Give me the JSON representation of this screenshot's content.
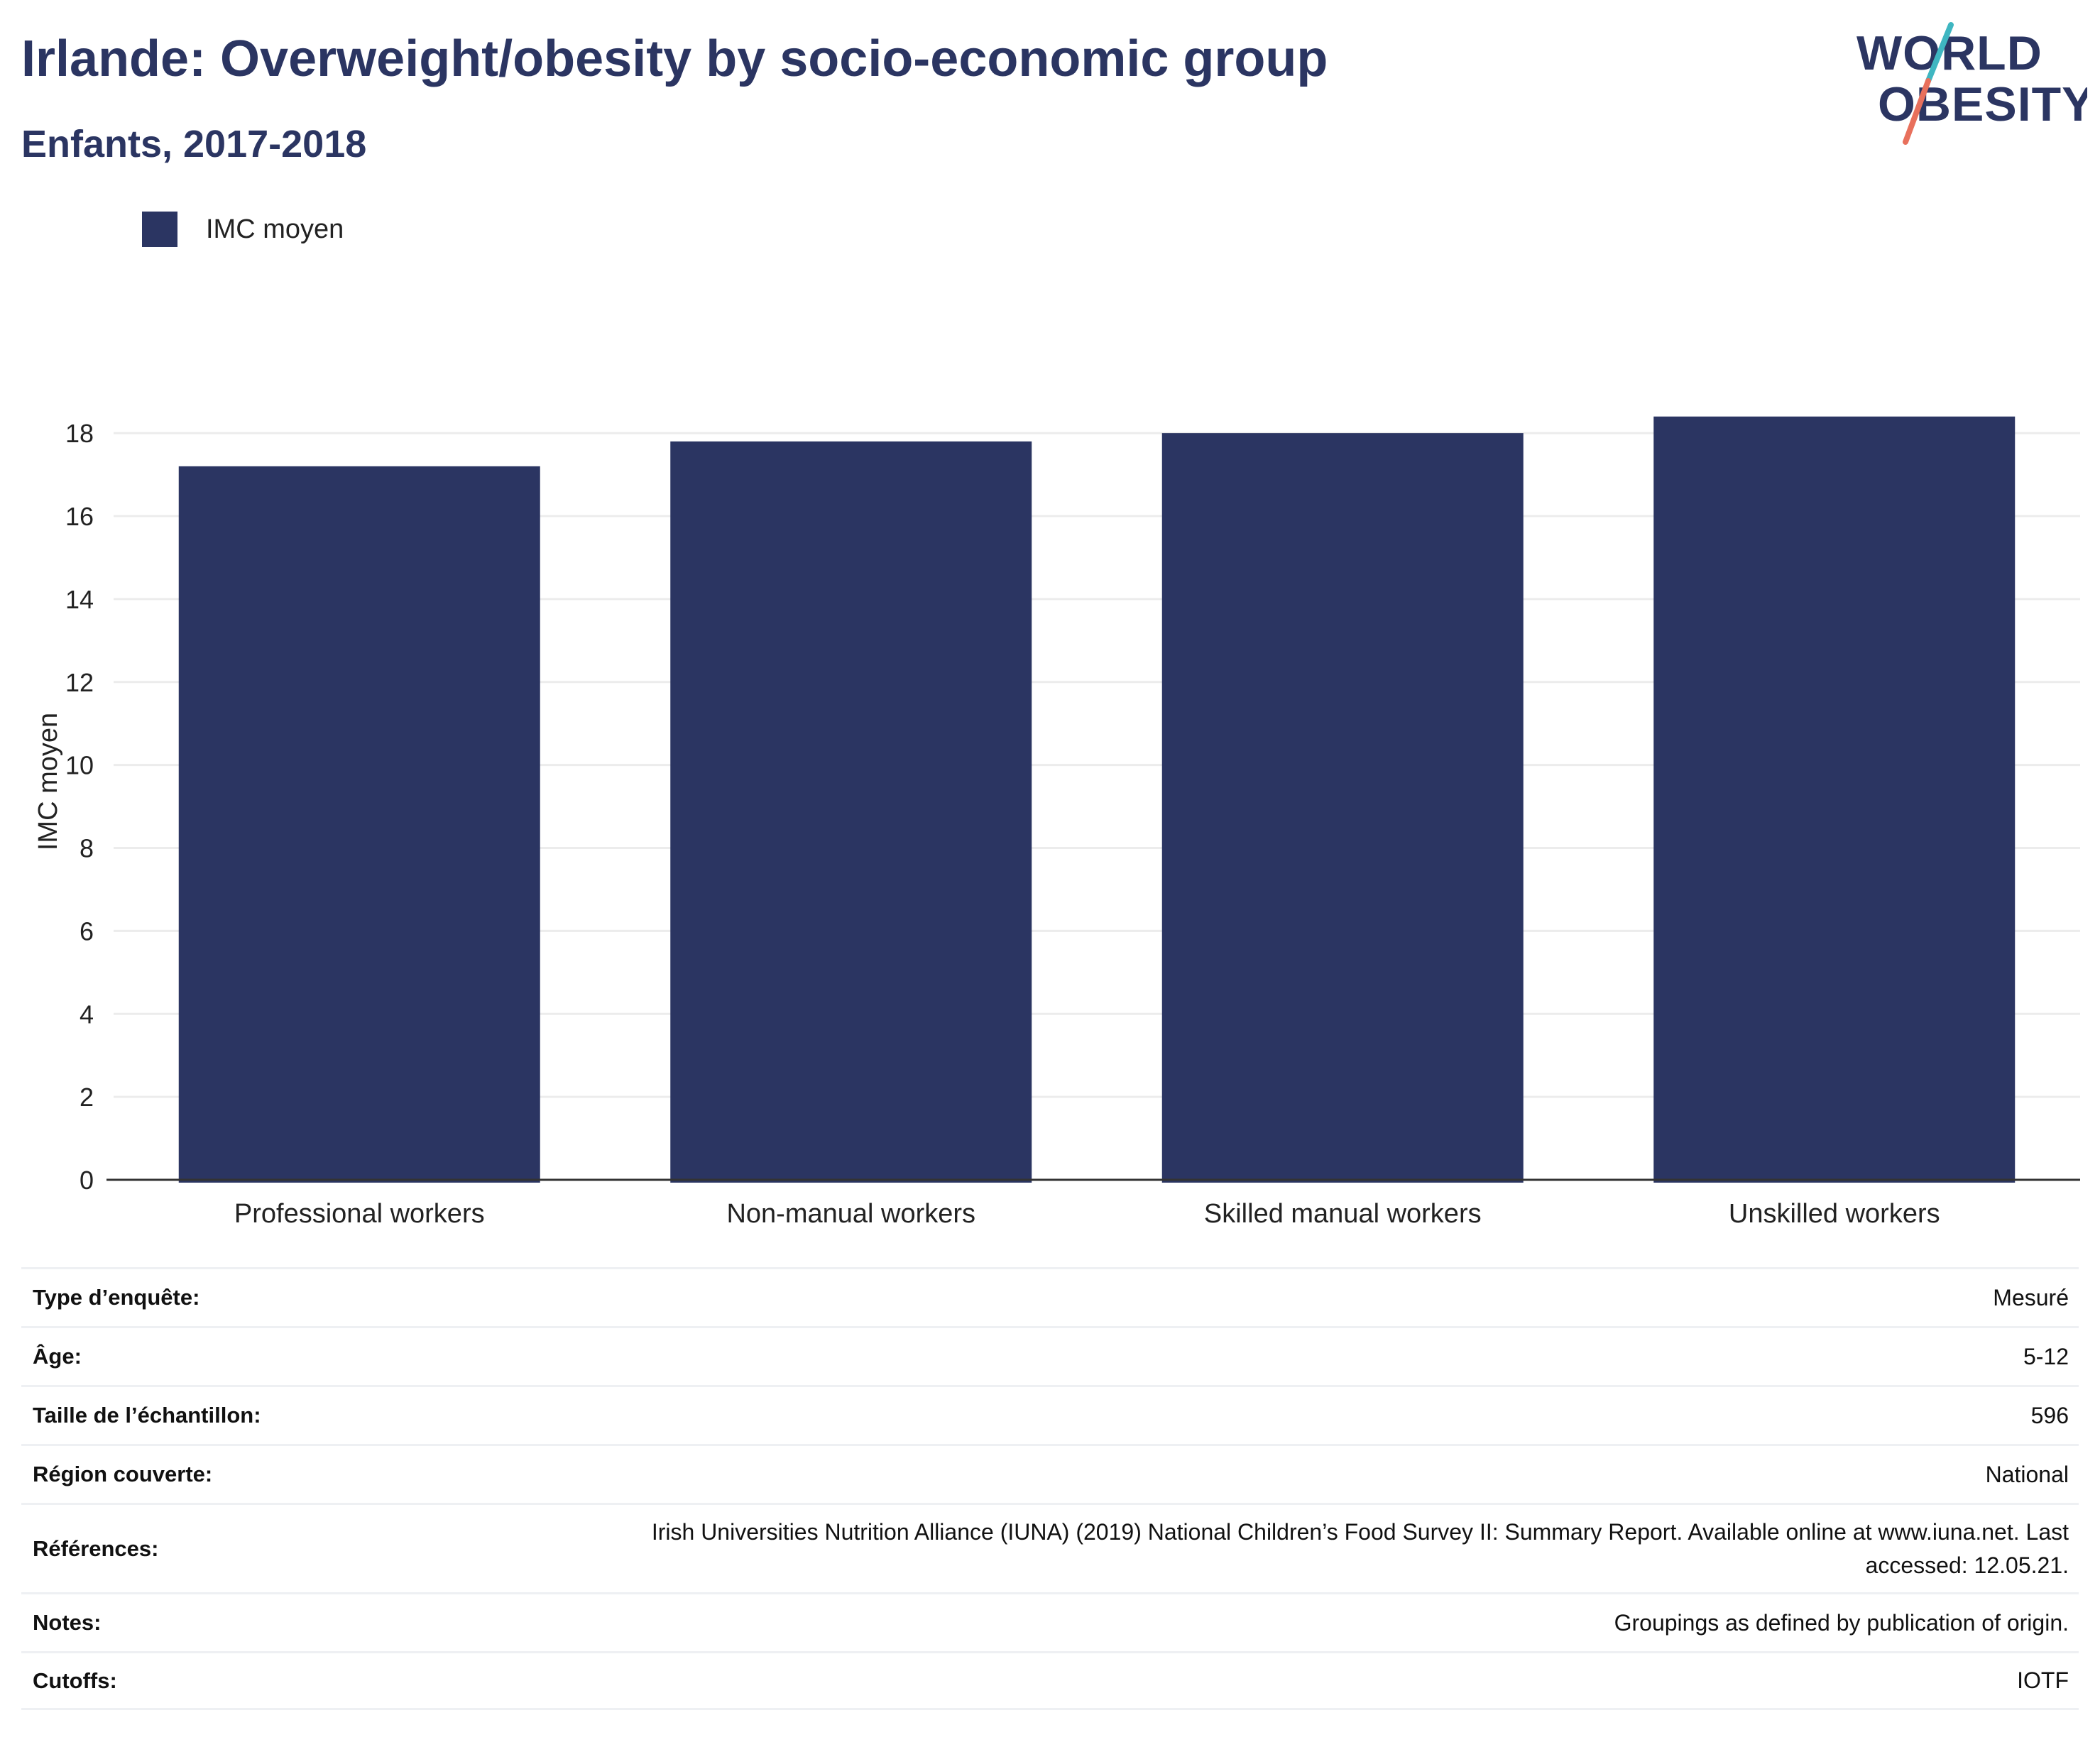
{
  "header": {
    "title": "Irlande: Overweight/obesity by socio-economic group",
    "subtitle": "Enfants, 2017-2018"
  },
  "logo": {
    "line1": "WORLD",
    "line2": "OBESITY"
  },
  "legend": {
    "items": [
      {
        "label": "IMC moyen",
        "color": "#2b3562"
      }
    ]
  },
  "chart_data": {
    "type": "bar",
    "title": "Irlande: Overweight/obesity by socio-economic group",
    "subtitle": "Enfants, 2017-2018",
    "categories": [
      "Professional workers",
      "Non-manual workers",
      "Skilled manual workers",
      "Unskilled workers"
    ],
    "series": [
      {
        "name": "IMC moyen",
        "values": [
          17.2,
          17.8,
          18.0,
          18.4
        ],
        "color": "#2b3562"
      }
    ],
    "xlabel": "",
    "ylabel": "IMC moyen",
    "ylim": [
      0,
      19.2
    ],
    "yticks": [
      0,
      2,
      4,
      6,
      8,
      10,
      12,
      14,
      16,
      18
    ],
    "grid": true,
    "legend_position": "top-left"
  },
  "info": {
    "rows": [
      {
        "label": "Type d’enquête:",
        "value": "Mesuré"
      },
      {
        "label": "Âge:",
        "value": "5-12"
      },
      {
        "label": "Taille de l’échantillon:",
        "value": "596"
      },
      {
        "label": "Région couverte:",
        "value": "National"
      },
      {
        "label": "Références:",
        "value": "Irish Universities Nutrition Alliance (IUNA) (2019) National Children’s Food Survey II: Summary Report. Available online at www.iuna.net. Last accessed: 12.05.21."
      },
      {
        "label": "Notes:",
        "value": "Groupings as defined by publication of origin."
      },
      {
        "label": "Cutoffs:",
        "value": "IOTF"
      }
    ]
  }
}
